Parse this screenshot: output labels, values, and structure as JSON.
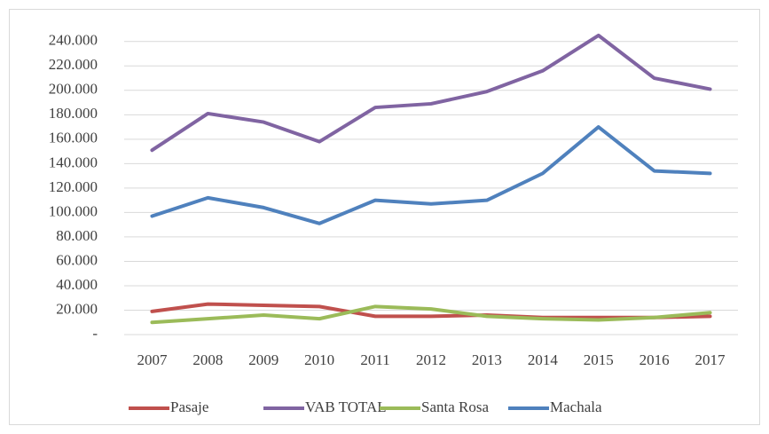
{
  "chart_data": {
    "type": "line",
    "categories": [
      "2007",
      "2008",
      "2009",
      "2010",
      "2011",
      "2012",
      "2013",
      "2014",
      "2015",
      "2016",
      "2017"
    ],
    "series": [
      {
        "name": "Pasaje",
        "color": "#c0504d",
        "values": [
          19000,
          25000,
          24000,
          23000,
          15000,
          15000,
          16000,
          14000,
          14000,
          14000,
          15000
        ]
      },
      {
        "name": "VAB TOTAL",
        "color": "#8064a2",
        "values": [
          151000,
          181000,
          174000,
          158000,
          186000,
          189000,
          199000,
          216000,
          245000,
          210000,
          201000
        ]
      },
      {
        "name": "Santa Rosa",
        "color": "#9bbb59",
        "values": [
          10000,
          13000,
          16000,
          13000,
          23000,
          21000,
          15000,
          13000,
          12000,
          14000,
          18000
        ]
      },
      {
        "name": "Machala",
        "color": "#4f81bd",
        "values": [
          97000,
          112000,
          104000,
          91000,
          110000,
          107000,
          110000,
          132000,
          170000,
          134000,
          132000
        ]
      }
    ],
    "ylim": [
      0,
      250000
    ],
    "yticks": [
      {
        "value": 0,
        "label": "-"
      },
      {
        "value": 20000,
        "label": "20.000"
      },
      {
        "value": 40000,
        "label": "40.000"
      },
      {
        "value": 60000,
        "label": "60.000"
      },
      {
        "value": 80000,
        "label": "80.000"
      },
      {
        "value": 100000,
        "label": "100.000"
      },
      {
        "value": 120000,
        "label": "120.000"
      },
      {
        "value": 140000,
        "label": "140.000"
      },
      {
        "value": 160000,
        "label": "160.000"
      },
      {
        "value": 180000,
        "label": "180.000"
      },
      {
        "value": 200000,
        "label": "200.000"
      },
      {
        "value": 220000,
        "label": "220.000"
      },
      {
        "value": 240000,
        "label": "240.000"
      }
    ],
    "grid": true,
    "legend": "bottom"
  }
}
